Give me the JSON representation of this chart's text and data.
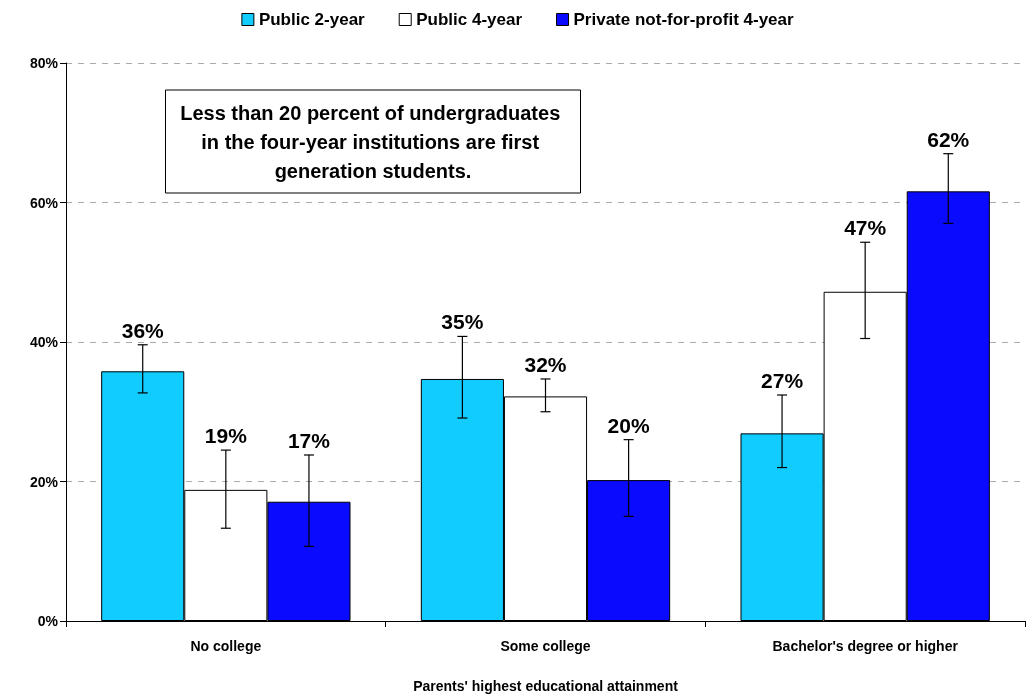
{
  "chart_data": {
    "type": "bar",
    "xlabel": "Parents' highest educational attainment",
    "categories": [
      "No college",
      "Some college",
      "Bachelor's degree or higher"
    ],
    "series": [
      {
        "name": "Public 2-year",
        "color": "#10ccff",
        "values": [
          35.8,
          34.7,
          26.9
        ],
        "value_labels": [
          "36%",
          "35%",
          "27%"
        ],
        "errors": [
          [
            32.7,
            39.6
          ],
          [
            29.1,
            40.8
          ],
          [
            22.0,
            32.4
          ]
        ]
      },
      {
        "name": "Public 4-year",
        "color": "#ffffff",
        "values": [
          18.8,
          32.2,
          47.2
        ],
        "value_labels": [
          "19%",
          "32%",
          "47%"
        ],
        "errors": [
          [
            13.3,
            24.5
          ],
          [
            30.0,
            34.7
          ],
          [
            40.5,
            54.3
          ]
        ]
      },
      {
        "name": "Private not-for-profit 4-year",
        "color": "#0a0aff",
        "values": [
          17.1,
          20.2,
          61.6
        ],
        "value_labels": [
          "17%",
          "20%",
          "62%"
        ],
        "errors": [
          [
            10.7,
            23.8
          ],
          [
            15.0,
            26.0
          ],
          [
            57.0,
            67.0
          ]
        ]
      }
    ],
    "ylim": [
      0,
      80
    ],
    "yticks": [
      {
        "value": 0,
        "label": "0%"
      },
      {
        "value": 20,
        "label": "20%"
      },
      {
        "value": 40,
        "label": "40%"
      },
      {
        "value": 60,
        "label": "60%"
      },
      {
        "value": 80,
        "label": "80%"
      }
    ],
    "grid": "y",
    "legend": "top",
    "annotations": [
      "Less than 20 percent of undergraduates in the four-year institutions are first generation students."
    ]
  }
}
